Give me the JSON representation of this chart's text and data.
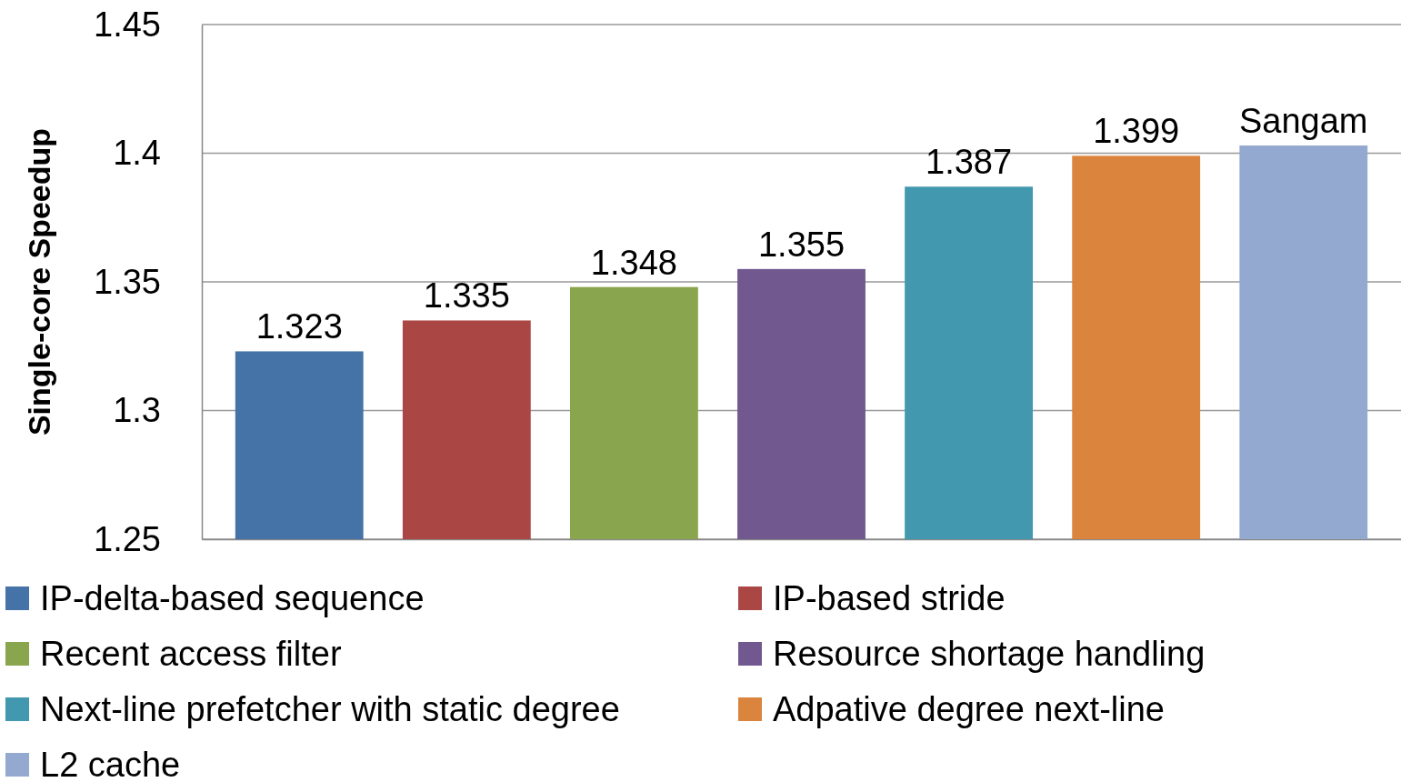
{
  "chart_data": {
    "type": "bar",
    "ylabel": "Single-core Speedup",
    "categories": [
      null,
      null,
      null,
      null,
      null,
      null,
      null
    ],
    "series": [
      {
        "name": "IP-delta-based sequence",
        "color": "#4573a7",
        "values": [
          1.323,
          null,
          null,
          null,
          null,
          null,
          null
        ],
        "value_labels": [
          "1.323",
          null,
          null,
          null,
          null,
          null,
          null
        ]
      },
      {
        "name": "IP-based stride",
        "color": "#aa4644",
        "values": [
          null,
          1.335,
          null,
          null,
          null,
          null,
          null
        ],
        "value_labels": [
          null,
          "1.335",
          null,
          null,
          null,
          null,
          null
        ]
      },
      {
        "name": "Recent access filter",
        "color": "#89a54e",
        "values": [
          null,
          null,
          1.348,
          null,
          null,
          null,
          null
        ],
        "value_labels": [
          null,
          null,
          "1.348",
          null,
          null,
          null,
          null
        ]
      },
      {
        "name": "Resource shortage handling",
        "color": "#71588f",
        "values": [
          null,
          null,
          null,
          1.355,
          null,
          null,
          null
        ],
        "value_labels": [
          null,
          null,
          null,
          "1.355",
          null,
          null,
          null
        ]
      },
      {
        "name": "Next-line prefetcher with static degree",
        "color": "#4198af",
        "values": [
          null,
          null,
          null,
          null,
          1.387,
          null,
          null
        ],
        "value_labels": [
          null,
          null,
          null,
          null,
          "1.387",
          null,
          null
        ]
      },
      {
        "name": "Adpative degree next-line",
        "color": "#db843d",
        "values": [
          null,
          null,
          null,
          null,
          null,
          1.399,
          null
        ],
        "value_labels": [
          null,
          null,
          null,
          null,
          null,
          "1.399",
          null
        ]
      },
      {
        "name": "L2 cache",
        "color": "#93a9cf",
        "values": [
          null,
          null,
          null,
          null,
          null,
          null,
          1.403
        ],
        "value_labels": [
          null,
          null,
          null,
          null,
          null,
          null,
          "Sangam"
        ]
      }
    ],
    "ylim": [
      1.25,
      1.45
    ],
    "yticks": [
      1.25,
      1.3,
      1.35,
      1.4,
      1.45
    ],
    "grid": "y",
    "legend": "bottom"
  }
}
